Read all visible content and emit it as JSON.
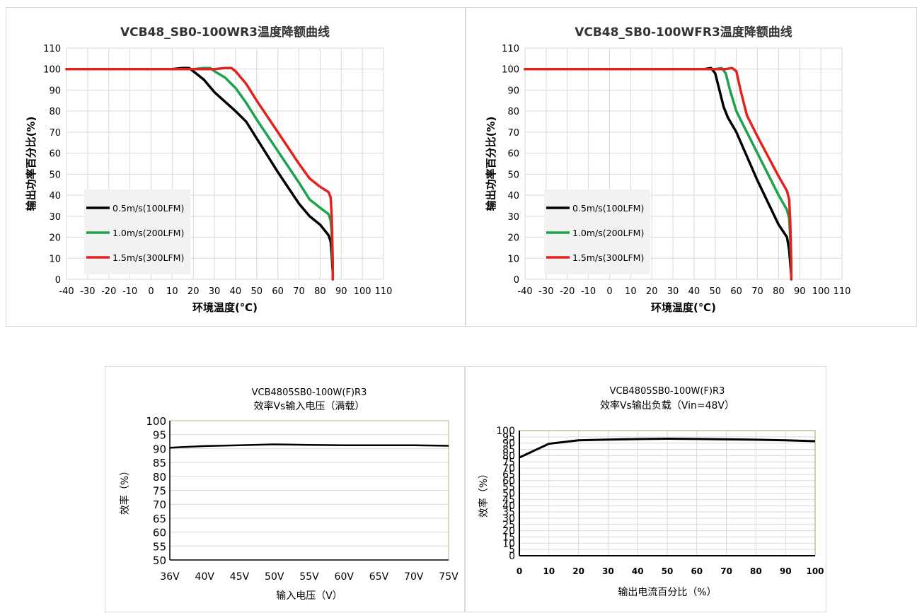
{
  "chart_data": [
    {
      "type": "line",
      "title": "VCB48_SB0-100WR3温度降额曲线",
      "xlabel": "环境温度(℃)",
      "ylabel": "输出功率百分比(%)",
      "xlim": [
        -40,
        110
      ],
      "ylim": [
        0,
        110
      ],
      "xticks": [
        -40,
        -30,
        -20,
        -10,
        0,
        10,
        20,
        30,
        40,
        50,
        60,
        70,
        80,
        90,
        100,
        110
      ],
      "yticks": [
        0,
        10,
        20,
        30,
        40,
        50,
        60,
        70,
        80,
        90,
        100,
        110
      ],
      "grid": true,
      "legend": "lower-left",
      "series": [
        {
          "name": "0.5m/s(100LFM)",
          "color": "#000000",
          "x": [
            -40,
            10,
            15,
            18,
            20,
            25,
            30,
            40,
            45,
            50,
            60,
            70,
            75,
            80,
            84,
            85,
            85.5,
            86,
            86
          ],
          "y": [
            100,
            100,
            100.5,
            100.5,
            99,
            95,
            89,
            80,
            75,
            67,
            51,
            36,
            30,
            26,
            21,
            18,
            12,
            3,
            0
          ]
        },
        {
          "name": "1.0m/s(200LFM)",
          "color": "#1ba34c",
          "x": [
            -40,
            15,
            20,
            25,
            28,
            30,
            35,
            40,
            45,
            50,
            60,
            70,
            75,
            80,
            84,
            85,
            85.5,
            86,
            86
          ],
          "y": [
            100,
            100,
            100,
            100.5,
            100.5,
            99,
            96,
            91,
            84,
            76,
            61,
            46,
            38,
            34,
            31,
            28,
            22,
            5,
            0
          ]
        },
        {
          "name": "1.5m/s(300LFM)",
          "color": "#e4211c",
          "x": [
            -40,
            20,
            30,
            35,
            38,
            40,
            45,
            50,
            60,
            70,
            75,
            80,
            84,
            85,
            85.5,
            86,
            86
          ],
          "y": [
            100,
            100,
            100,
            100.5,
            100.5,
            99,
            93,
            85,
            70,
            55,
            48,
            44,
            41.5,
            39,
            30,
            8,
            0
          ]
        }
      ]
    },
    {
      "type": "line",
      "title": "VCB48_SB0-100WFR3温度降额曲线",
      "xlabel": "环境温度(℃)",
      "ylabel": "输出功率百分比(%)",
      "xlim": [
        -40,
        110
      ],
      "ylim": [
        0,
        110
      ],
      "xticks": [
        -40,
        -30,
        -20,
        -10,
        0,
        10,
        20,
        30,
        40,
        50,
        60,
        70,
        80,
        90,
        100,
        110
      ],
      "yticks": [
        0,
        10,
        20,
        30,
        40,
        50,
        60,
        70,
        80,
        90,
        100,
        110
      ],
      "grid": true,
      "legend": "lower-left",
      "series": [
        {
          "name": "0.5m/s(100LFM)",
          "color": "#000000",
          "x": [
            -40,
            45,
            48,
            50,
            52,
            54,
            56,
            60,
            70,
            80,
            84,
            85,
            85.5,
            86,
            86
          ],
          "y": [
            100,
            100,
            100.5,
            98,
            90,
            82,
            77,
            70,
            47,
            26,
            20,
            14,
            8,
            2,
            0
          ]
        },
        {
          "name": "1.0m/s(200LFM)",
          "color": "#1ba34c",
          "x": [
            -40,
            50,
            53,
            55,
            57,
            60,
            62,
            70,
            80,
            84,
            85,
            85.5,
            86,
            86
          ],
          "y": [
            100,
            100,
            100.5,
            98,
            90,
            80,
            76,
            60,
            40,
            33,
            29,
            20,
            5,
            0
          ]
        },
        {
          "name": "1.5m/s(300LFM)",
          "color": "#e4211c",
          "x": [
            -40,
            55,
            58,
            60,
            62,
            65,
            70,
            80,
            84,
            85,
            85.5,
            86,
            86
          ],
          "y": [
            100,
            100,
            100.5,
            99,
            90,
            78,
            68,
            49,
            42,
            38,
            28,
            8,
            0
          ]
        }
      ]
    },
    {
      "type": "line",
      "title": "VCB4805SB0-100W(F)R3",
      "subtitle": "效率Vs输入电压（满载）",
      "xlabel": "输入电压（V）",
      "ylabel": "效率（%）",
      "categories": [
        "36V",
        "40V",
        "45V",
        "50V",
        "55V",
        "60V",
        "65V",
        "70V",
        "75V"
      ],
      "yticks": [
        50,
        55,
        60,
        65,
        70,
        75,
        80,
        85,
        90,
        95,
        100
      ],
      "ylim": [
        50,
        100
      ],
      "grid": true,
      "series": [
        {
          "color": "#000000",
          "values": [
            90.3,
            90.9,
            91.2,
            91.5,
            91.3,
            91.2,
            91.2,
            91.2,
            91.0
          ]
        }
      ]
    },
    {
      "type": "line",
      "title": "VCB4805SB0-100W(F)R3",
      "subtitle": "效率Vs输出负载（Vin=48V）",
      "xlabel": "输出电流百分比（%）",
      "ylabel": "效率（%）",
      "x": [
        0,
        10,
        20,
        30,
        40,
        50,
        60,
        70,
        80,
        90,
        100
      ],
      "xlim": [
        0,
        100
      ],
      "ylim": [
        0,
        100
      ],
      "xticks": [
        0,
        10,
        20,
        30,
        40,
        50,
        60,
        70,
        80,
        90,
        100
      ],
      "yticks": [
        0,
        5,
        10,
        15,
        20,
        25,
        30,
        35,
        40,
        45,
        50,
        55,
        60,
        65,
        70,
        75,
        80,
        85,
        90,
        95,
        100
      ],
      "grid": true,
      "series": [
        {
          "color": "#000000",
          "values": [
            78.5,
            89.5,
            92.2,
            92.8,
            93.2,
            93.5,
            93.3,
            93.0,
            92.7,
            92.2,
            91.5
          ]
        }
      ]
    }
  ]
}
